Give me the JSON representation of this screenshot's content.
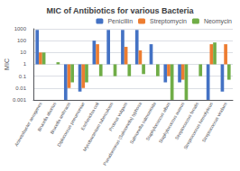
{
  "chart_data": {
    "type": "bar",
    "title": "MIC of Antibiotics for various Bacteria",
    "ylabel": "MIC",
    "categories": [
      "Acinetobacter aerogenes",
      "Brucella abortus",
      "Brucella anthracis",
      "Diplococcus pneumoniae",
      "Escherichia coli",
      "Mycobacterium tuberculosis",
      "Proteus vulgaris",
      "Pseudomonas (Salmonella) typhosa",
      "Salmonella salmonicida",
      "Staphylococcus albus",
      "Staphylococcus aureus",
      "Streptococcus fecalis",
      "Streptococcus hemolyticus",
      "Streptococcus viridans"
    ],
    "series": [
      {
        "name": "Penicillin",
        "color": "#4472c4",
        "values": [
          800,
          1.0,
          0.001,
          0.005,
          100,
          800,
          800,
          800,
          50,
          0.03,
          0.03,
          1.0,
          0.001,
          0.005
        ]
      },
      {
        "name": "Streptomycin",
        "color": "#ed7d31",
        "values": [
          10,
          1.0,
          0.01,
          0.01,
          50,
          1.0,
          30,
          15,
          1.0,
          0.1,
          0.05,
          1.0,
          50,
          50
        ]
      },
      {
        "name": "Neomycin",
        "color": "#70ad47",
        "values": [
          10,
          1.5,
          0.03,
          0.03,
          0.1,
          0.1,
          0.1,
          0.15,
          0.1,
          0.001,
          0.001,
          0.1,
          70,
          0.05
        ]
      }
    ],
    "ylim": [
      0.001,
      1000
    ],
    "yticks": [
      0.001,
      0.01,
      0.1,
      1,
      10,
      100,
      1000
    ],
    "log": "y",
    "grid": true,
    "legend": "upper right"
  }
}
